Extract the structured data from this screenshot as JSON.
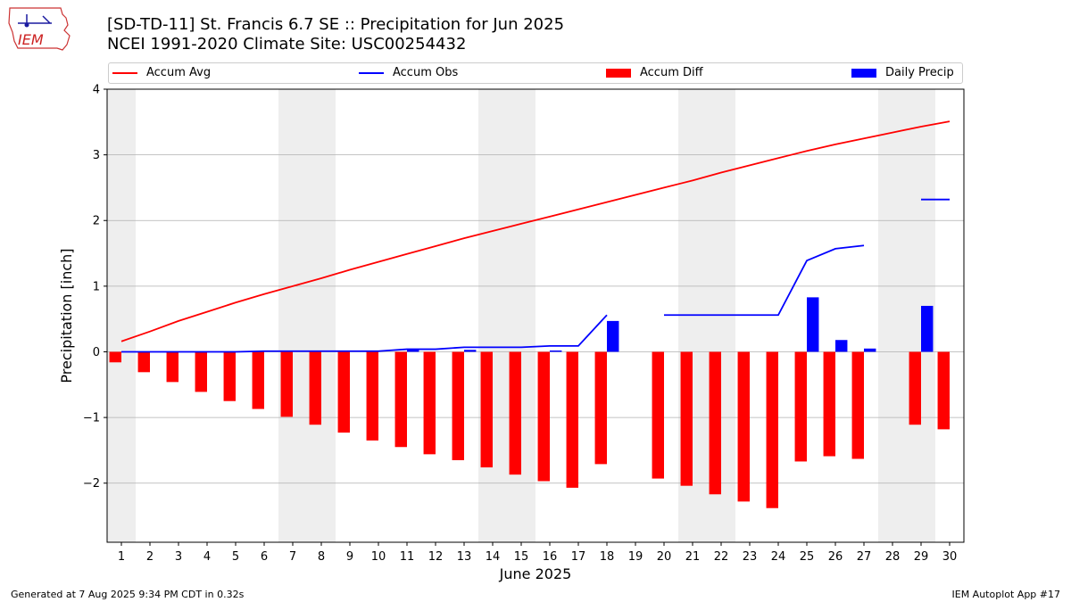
{
  "header": {
    "title_line1": "[SD-TD-11] St. Francis 6.7 SE :: Precipitation for Jun 2025",
    "title_line2": "NCEI 1991-2020 Climate Site: USC00254432",
    "logo_text": "IEM"
  },
  "legend": [
    {
      "label": "Accum Avg",
      "kind": "line",
      "color": "#ff0000"
    },
    {
      "label": "Accum Obs",
      "kind": "line",
      "color": "#0000ff"
    },
    {
      "label": "Accum Diff",
      "kind": "box",
      "color": "#ff0000"
    },
    {
      "label": "Daily Precip",
      "kind": "box",
      "color": "#0000ff"
    }
  ],
  "footer": {
    "left": "Generated at 7 Aug 2025 9:34 PM CDT in 0.32s",
    "right": "IEM Autoplot App #17"
  },
  "chart_data": {
    "type": "bar",
    "xlabel": "June 2025",
    "ylabel": "Precipitation [inch]",
    "xlim": [
      0.5,
      30.5
    ],
    "ylim": [
      -2.9,
      4.0
    ],
    "yticks": [
      -2,
      -1,
      0,
      1,
      2,
      3,
      4
    ],
    "ytick_labels": [
      "−2",
      "−1",
      "0",
      "1",
      "2",
      "3",
      "4"
    ],
    "categories": [
      "1",
      "2",
      "3",
      "4",
      "5",
      "6",
      "7",
      "8",
      "9",
      "10",
      "11",
      "12",
      "13",
      "14",
      "15",
      "16",
      "17",
      "18",
      "19",
      "20",
      "21",
      "22",
      "23",
      "24",
      "25",
      "26",
      "27",
      "28",
      "29",
      "30"
    ],
    "grid": "y",
    "weekend_shading_days": [
      [
        0.5,
        1.5
      ],
      [
        6.5,
        8.5
      ],
      [
        13.5,
        15.5
      ],
      [
        20.5,
        22.5
      ],
      [
        27.5,
        29.5
      ]
    ],
    "colors": {
      "avg": "#ff0000",
      "obs": "#0000ff",
      "diff": "#ff0000",
      "daily": "#0000ff",
      "shade": "#eeeeee",
      "grid": "#b0b0b0"
    },
    "series": [
      {
        "name": "Accum Avg",
        "kind": "line",
        "values": [
          0.16,
          0.31,
          0.47,
          0.61,
          0.75,
          0.88,
          1.0,
          1.12,
          1.25,
          1.37,
          1.49,
          1.61,
          1.73,
          1.84,
          1.95,
          2.06,
          2.17,
          2.28,
          2.39,
          2.5,
          2.61,
          2.73,
          2.84,
          2.95,
          3.06,
          3.16,
          3.25,
          3.34,
          3.43,
          3.51
        ]
      },
      {
        "name": "Accum Obs",
        "kind": "line",
        "values": [
          0.0,
          0.0,
          0.0,
          0.0,
          0.0,
          0.01,
          0.01,
          0.01,
          0.01,
          0.01,
          0.04,
          0.04,
          0.07,
          0.07,
          0.07,
          0.09,
          0.09,
          0.56,
          null,
          0.56,
          0.56,
          0.56,
          0.56,
          0.56,
          1.39,
          1.57,
          1.62,
          null,
          2.32,
          2.32
        ]
      },
      {
        "name": "Accum Diff",
        "kind": "bar",
        "values": [
          -0.16,
          -0.31,
          -0.46,
          -0.61,
          -0.75,
          -0.87,
          -0.99,
          -1.11,
          -1.23,
          -1.35,
          -1.45,
          -1.56,
          -1.65,
          -1.76,
          -1.87,
          -1.97,
          -2.07,
          -1.71,
          null,
          -1.93,
          -2.04,
          -2.17,
          -2.28,
          -2.38,
          -1.67,
          -1.59,
          -1.63,
          null,
          -1.11,
          -1.18
        ]
      },
      {
        "name": "Daily Precip",
        "kind": "bar",
        "values": [
          0,
          0,
          0,
          0,
          0,
          0.01,
          0,
          0,
          0,
          0,
          0.03,
          0,
          0.03,
          0,
          0,
          0.02,
          0,
          0.47,
          null,
          0,
          0,
          0,
          0,
          0,
          0.83,
          0.18,
          0.05,
          null,
          0.7,
          0
        ]
      }
    ]
  }
}
